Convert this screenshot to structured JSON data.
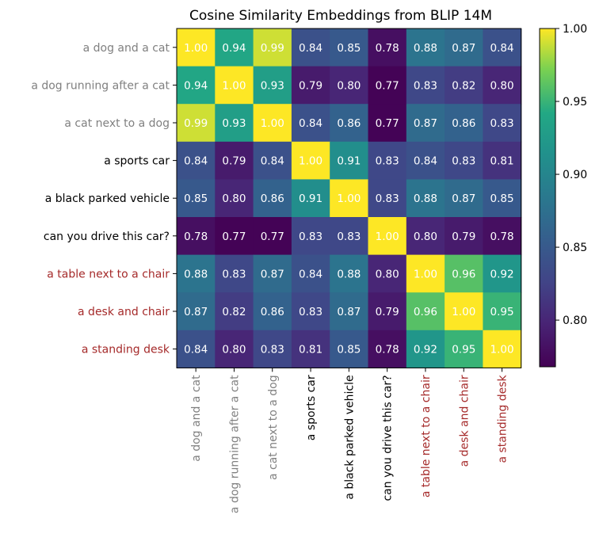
{
  "chart_data": {
    "type": "heatmap",
    "title": "Cosine Similarity Embeddings from BLIP 14M",
    "labels": [
      "a dog and a cat",
      "a dog running after a cat",
      "a cat next to a dog",
      "a sports car",
      "a black parked vehicle",
      "can you drive this car?",
      "a table next to a chair",
      "a desk and chair",
      "a standing desk"
    ],
    "label_colors": [
      "#808080",
      "#808080",
      "#808080",
      "#000000",
      "#000000",
      "#000000",
      "#a52a2a",
      "#a52a2a",
      "#a52a2a"
    ],
    "values": [
      [
        1.0,
        0.94,
        0.99,
        0.84,
        0.85,
        0.78,
        0.88,
        0.87,
        0.84
      ],
      [
        0.94,
        1.0,
        0.93,
        0.79,
        0.8,
        0.77,
        0.83,
        0.82,
        0.8
      ],
      [
        0.99,
        0.93,
        1.0,
        0.84,
        0.86,
        0.77,
        0.87,
        0.86,
        0.83
      ],
      [
        0.84,
        0.79,
        0.84,
        1.0,
        0.91,
        0.83,
        0.84,
        0.83,
        0.81
      ],
      [
        0.85,
        0.8,
        0.86,
        0.91,
        1.0,
        0.83,
        0.88,
        0.87,
        0.85
      ],
      [
        0.78,
        0.77,
        0.77,
        0.83,
        0.83,
        1.0,
        0.8,
        0.79,
        0.78
      ],
      [
        0.88,
        0.83,
        0.87,
        0.84,
        0.88,
        0.8,
        1.0,
        0.96,
        0.92
      ],
      [
        0.87,
        0.82,
        0.86,
        0.83,
        0.87,
        0.79,
        0.96,
        1.0,
        0.95
      ],
      [
        0.84,
        0.8,
        0.83,
        0.81,
        0.85,
        0.78,
        0.92,
        0.95,
        1.0
      ]
    ],
    "colormap": "viridis",
    "vmin": 0.768,
    "vmax": 1.0,
    "colorbar_ticks": [
      "0.80",
      "0.85",
      "0.90",
      "0.95",
      "1.00"
    ]
  }
}
